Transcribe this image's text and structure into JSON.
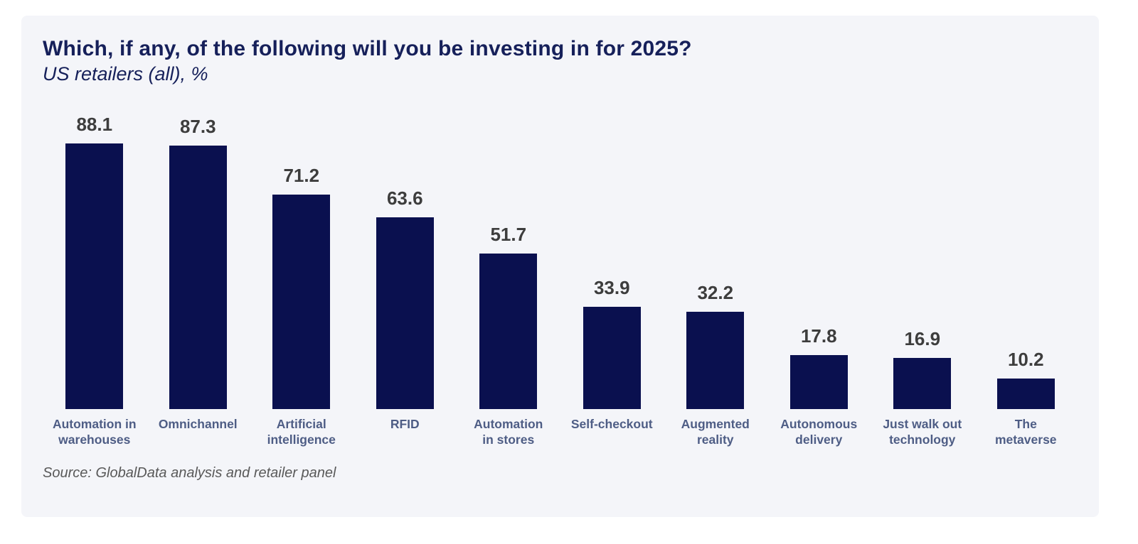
{
  "header": {
    "title": "Which, if any, of the following will you be investing in for 2025?",
    "subtitle": "US retailers (all), %"
  },
  "footer": {
    "source": "Source: GlobalData analysis and retailer panel"
  },
  "colors": {
    "bar": "#0a104f",
    "title_text": "#16205a",
    "value_label": "#3d3d3d",
    "category_label": "#4e5d85",
    "source_text": "#595959",
    "card_background": "#f4f5f9",
    "page_background": "#ffffff"
  },
  "chart_data": {
    "type": "bar",
    "title": "Which, if any, of the following will you be investing in for 2025?",
    "subtitle": "US retailers (all), %",
    "categories": [
      "Automation in warehouses",
      "Omnichannel",
      "Artificial intelligence",
      "RFID",
      "Automation in stores",
      "Self-checkout",
      "Augmented reality",
      "Autonomous delivery",
      "Just walk out technology",
      "The metaverse"
    ],
    "tick_labels": [
      "Automation in\nwarehouses",
      "Omnichannel",
      "Artificial\nintelligence",
      "RFID",
      "Automation\nin stores",
      "Self-checkout",
      "Augmented\nreality",
      "Autonomous\ndelivery",
      "Just walk out\ntechnology",
      "The\nmetaverse"
    ],
    "values": [
      88.1,
      87.3,
      71.2,
      63.6,
      51.7,
      33.9,
      32.2,
      17.8,
      16.9,
      10.2
    ],
    "unit": "%",
    "xlabel": "",
    "ylabel": "%",
    "ylim": [
      0,
      100
    ],
    "grid": false,
    "legend": false,
    "value_labels_shown": true,
    "value_label_format": "0.1f"
  }
}
